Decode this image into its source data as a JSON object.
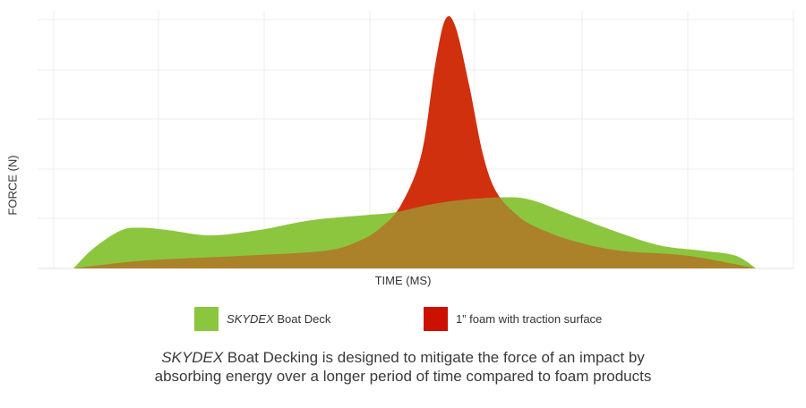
{
  "chart_data": {
    "type": "area",
    "xlabel": "TIME (MS)",
    "ylabel": "FORCE (N)",
    "ylim": [
      0,
      100
    ],
    "grid": true,
    "legend_position": "bottom",
    "series": [
      {
        "name_brand": "SKYDEX",
        "name_rest": " Boat Deck",
        "color": "#8cc63f",
        "points": [
          [
            0,
            0
          ],
          [
            3,
            8
          ],
          [
            7,
            15
          ],
          [
            10,
            16
          ],
          [
            14,
            15
          ],
          [
            20,
            13
          ],
          [
            27,
            15
          ],
          [
            35,
            19
          ],
          [
            43,
            21
          ],
          [
            47,
            22
          ],
          [
            52,
            25
          ],
          [
            57,
            27
          ],
          [
            63,
            28
          ],
          [
            67,
            27
          ],
          [
            73,
            21
          ],
          [
            80,
            14
          ],
          [
            86,
            9
          ],
          [
            92,
            7
          ],
          [
            97,
            5
          ],
          [
            100,
            0
          ]
        ]
      },
      {
        "name": "1” foam with traction surface",
        "color": "#d0300e",
        "points": [
          [
            0,
            0
          ],
          [
            10,
            3
          ],
          [
            25,
            5
          ],
          [
            37,
            7
          ],
          [
            42,
            11
          ],
          [
            45,
            16
          ],
          [
            48,
            25
          ],
          [
            51,
            45
          ],
          [
            53,
            80
          ],
          [
            54.5,
            98
          ],
          [
            56,
            95
          ],
          [
            58,
            72
          ],
          [
            60,
            45
          ],
          [
            62,
            30
          ],
          [
            65,
            21
          ],
          [
            68,
            16
          ],
          [
            73,
            11
          ],
          [
            80,
            7
          ],
          [
            90,
            5
          ],
          [
            100,
            0
          ]
        ]
      }
    ]
  },
  "legend": [
    {
      "brand": "SKYDEX",
      "label": " Boat Deck",
      "color": "#8cc63f"
    },
    {
      "brand": "",
      "label": "1” foam with traction surface",
      "color": "#cc1100"
    }
  ],
  "caption": {
    "brand": "SKYDEX",
    "line1_rest": " Boat Decking is designed to mitigate the force of an impact by",
    "line2": "absorbing energy over a longer period of time compared to foam products"
  }
}
